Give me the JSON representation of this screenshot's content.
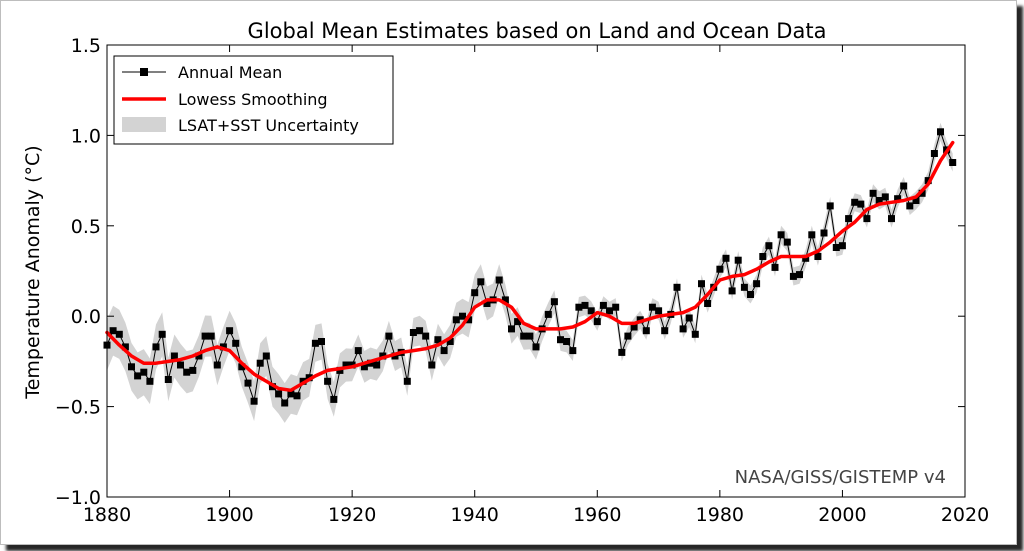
{
  "chart_data": {
    "type": "line",
    "title": "Global Mean Estimates based on Land and Ocean Data",
    "xlabel": "",
    "ylabel": "Temperature Anomaly (°C)",
    "xlim": [
      1880,
      2020
    ],
    "ylim": [
      -1.0,
      1.5
    ],
    "x_ticks": [
      1880,
      1900,
      1920,
      1940,
      1960,
      1980,
      2000,
      2020
    ],
    "y_ticks": [
      -1.0,
      -0.5,
      0.0,
      0.5,
      1.0,
      1.5
    ],
    "y_tick_labels": [
      "−1.0",
      "−0.5",
      "0.0",
      "0.5",
      "1.0",
      "1.5"
    ],
    "grid": false,
    "legend_position": "top-left",
    "annotation": "NASA/GISS/GISTEMP v4",
    "colors": {
      "annual": "#000000",
      "smooth": "#ff0000",
      "band": "#d3d3d3"
    },
    "series": [
      {
        "name": "Annual Mean",
        "style": "line-square-markers",
        "x": [
          1880,
          1881,
          1882,
          1883,
          1884,
          1885,
          1886,
          1887,
          1888,
          1889,
          1890,
          1891,
          1892,
          1893,
          1894,
          1895,
          1896,
          1897,
          1898,
          1899,
          1900,
          1901,
          1902,
          1903,
          1904,
          1905,
          1906,
          1907,
          1908,
          1909,
          1910,
          1911,
          1912,
          1913,
          1914,
          1915,
          1916,
          1917,
          1918,
          1919,
          1920,
          1921,
          1922,
          1923,
          1924,
          1925,
          1926,
          1927,
          1928,
          1929,
          1930,
          1931,
          1932,
          1933,
          1934,
          1935,
          1936,
          1937,
          1938,
          1939,
          1940,
          1941,
          1942,
          1943,
          1944,
          1945,
          1946,
          1947,
          1948,
          1949,
          1950,
          1951,
          1952,
          1953,
          1954,
          1955,
          1956,
          1957,
          1958,
          1959,
          1960,
          1961,
          1962,
          1963,
          1964,
          1965,
          1966,
          1967,
          1968,
          1969,
          1970,
          1971,
          1972,
          1973,
          1974,
          1975,
          1976,
          1977,
          1978,
          1979,
          1980,
          1981,
          1982,
          1983,
          1984,
          1985,
          1986,
          1987,
          1988,
          1989,
          1990,
          1991,
          1992,
          1993,
          1994,
          1995,
          1996,
          1997,
          1998,
          1999,
          2000,
          2001,
          2002,
          2003,
          2004,
          2005,
          2006,
          2007,
          2008,
          2009,
          2010,
          2011,
          2012,
          2013,
          2014,
          2015,
          2016,
          2017,
          2018
        ],
        "y": [
          -0.16,
          -0.08,
          -0.1,
          -0.17,
          -0.28,
          -0.33,
          -0.31,
          -0.36,
          -0.17,
          -0.1,
          -0.35,
          -0.22,
          -0.27,
          -0.31,
          -0.3,
          -0.22,
          -0.11,
          -0.11,
          -0.27,
          -0.17,
          -0.08,
          -0.15,
          -0.28,
          -0.37,
          -0.47,
          -0.26,
          -0.22,
          -0.39,
          -0.43,
          -0.48,
          -0.43,
          -0.44,
          -0.36,
          -0.34,
          -0.15,
          -0.14,
          -0.36,
          -0.46,
          -0.3,
          -0.27,
          -0.27,
          -0.19,
          -0.28,
          -0.26,
          -0.27,
          -0.22,
          -0.11,
          -0.22,
          -0.2,
          -0.36,
          -0.09,
          -0.08,
          -0.11,
          -0.27,
          -0.13,
          -0.19,
          -0.14,
          -0.02,
          -0.0,
          -0.02,
          0.13,
          0.19,
          0.07,
          0.09,
          0.2,
          0.09,
          -0.07,
          -0.03,
          -0.11,
          -0.11,
          -0.17,
          -0.07,
          0.01,
          0.08,
          -0.13,
          -0.14,
          -0.19,
          0.05,
          0.06,
          0.03,
          -0.03,
          0.06,
          0.03,
          0.05,
          -0.2,
          -0.11,
          -0.06,
          -0.02,
          -0.08,
          0.05,
          0.03,
          -0.08,
          0.01,
          0.16,
          -0.07,
          -0.01,
          -0.1,
          0.18,
          0.07,
          0.16,
          0.26,
          0.32,
          0.14,
          0.31,
          0.16,
          0.12,
          0.18,
          0.33,
          0.39,
          0.27,
          0.45,
          0.41,
          0.22,
          0.23,
          0.32,
          0.45,
          0.33,
          0.46,
          0.61,
          0.38,
          0.39,
          0.54,
          0.63,
          0.62,
          0.54,
          0.68,
          0.64,
          0.66,
          0.54,
          0.65,
          0.72,
          0.61,
          0.64,
          0.68,
          0.75,
          0.9,
          1.02,
          0.92,
          0.85
        ]
      },
      {
        "name": "Lowess Smoothing",
        "style": "line",
        "x": [
          1880,
          1882,
          1884,
          1886,
          1888,
          1890,
          1892,
          1894,
          1896,
          1898,
          1900,
          1902,
          1904,
          1906,
          1908,
          1910,
          1912,
          1914,
          1916,
          1918,
          1920,
          1922,
          1924,
          1926,
          1928,
          1930,
          1932,
          1934,
          1936,
          1938,
          1940,
          1942,
          1944,
          1946,
          1948,
          1950,
          1952,
          1954,
          1956,
          1958,
          1960,
          1962,
          1964,
          1966,
          1968,
          1970,
          1972,
          1974,
          1976,
          1978,
          1980,
          1982,
          1984,
          1986,
          1988,
          1990,
          1992,
          1994,
          1996,
          1998,
          2000,
          2002,
          2004,
          2006,
          2008,
          2010,
          2012,
          2014,
          2016,
          2018
        ],
        "y": [
          -0.09,
          -0.16,
          -0.22,
          -0.26,
          -0.26,
          -0.25,
          -0.24,
          -0.22,
          -0.19,
          -0.17,
          -0.19,
          -0.26,
          -0.32,
          -0.36,
          -0.4,
          -0.41,
          -0.37,
          -0.33,
          -0.3,
          -0.29,
          -0.28,
          -0.26,
          -0.24,
          -0.22,
          -0.2,
          -0.19,
          -0.18,
          -0.16,
          -0.12,
          -0.05,
          0.05,
          0.09,
          0.09,
          0.05,
          -0.04,
          -0.07,
          -0.07,
          -0.07,
          -0.06,
          -0.03,
          0.02,
          0.0,
          -0.04,
          -0.04,
          -0.02,
          0.0,
          0.01,
          0.02,
          0.05,
          0.12,
          0.2,
          0.22,
          0.23,
          0.26,
          0.3,
          0.33,
          0.33,
          0.33,
          0.36,
          0.41,
          0.47,
          0.52,
          0.59,
          0.62,
          0.63,
          0.64,
          0.66,
          0.73,
          0.86,
          0.96
        ]
      },
      {
        "name": "LSAT+SST Uncertainty",
        "style": "band",
        "x": [
          1880,
          1890,
          1900,
          1910,
          1920,
          1930,
          1940,
          1950,
          1960,
          1970,
          1980,
          1990,
          2000,
          2010,
          2018
        ],
        "half_width": [
          0.14,
          0.12,
          0.11,
          0.11,
          0.09,
          0.08,
          0.1,
          0.07,
          0.05,
          0.05,
          0.05,
          0.05,
          0.05,
          0.05,
          0.05
        ]
      }
    ]
  }
}
